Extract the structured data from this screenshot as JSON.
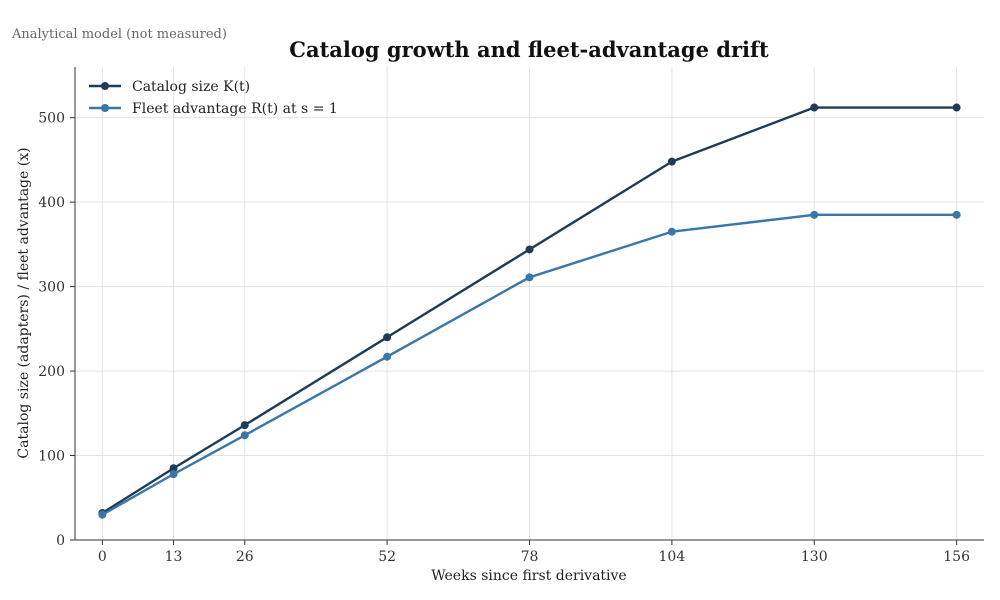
{
  "note": "Analytical model (not measured)",
  "chart_data": {
    "type": "line",
    "title": "Catalog growth and fleet-advantage drift",
    "xlabel": "Weeks since first derivative",
    "ylabel": "Catalog size (adapters) / fleet advantage (x)",
    "x": [
      0,
      13,
      26,
      52,
      78,
      104,
      130,
      156
    ],
    "x_ticks": [
      0,
      13,
      26,
      52,
      78,
      104,
      130,
      156
    ],
    "y_ticks": [
      0,
      100,
      200,
      300,
      400,
      500
    ],
    "xlim": [
      -5,
      161
    ],
    "ylim": [
      0,
      560
    ],
    "grid": true,
    "legend_position": "top-left",
    "series": [
      {
        "name": "Catalog size K(t)",
        "color": "#1f3b57",
        "values": [
          32,
          85,
          136,
          240,
          344,
          448,
          512,
          512
        ]
      },
      {
        "name": "Fleet advantage R(t) at s = 1",
        "color": "#3a76a8",
        "values": [
          30,
          78,
          124,
          217,
          311,
          365,
          385,
          385
        ]
      }
    ]
  }
}
